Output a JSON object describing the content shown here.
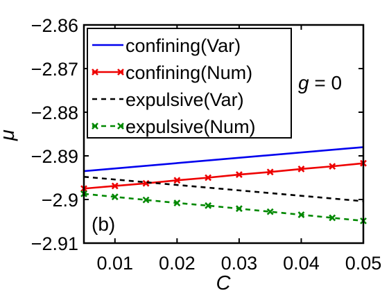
{
  "chart_data": {
    "type": "line",
    "title": "",
    "xlabel": "C",
    "ylabel": "μ",
    "xlim": [
      0.005,
      0.05
    ],
    "ylim": [
      -2.91,
      -2.86
    ],
    "xticks": [
      0.01,
      0.02,
      0.03,
      0.04,
      0.05
    ],
    "xtick_labels": [
      "0.01",
      "0.02",
      "0.03",
      "0.04",
      "0.05"
    ],
    "yticks": [
      -2.86,
      -2.87,
      -2.88,
      -2.89,
      -2.9,
      -2.91
    ],
    "ytick_labels": [
      "−2.86",
      "−2.87",
      "−2.88",
      "−2.89",
      "−2.9",
      "−2.91"
    ],
    "grid": false,
    "legend_position": "top-left",
    "annotations": {
      "panel": "(b)",
      "g_var": "g",
      "g_rest": " = 0"
    },
    "series": [
      {
        "name": "confining(Var)",
        "color": "#0000ee",
        "dash": "solid",
        "marker": "none",
        "x": [
          0.005,
          0.05
        ],
        "y": [
          -2.8935,
          -2.888
        ]
      },
      {
        "name": "confining(Num)",
        "color": "#ee0000",
        "dash": "solid",
        "marker": "x",
        "x": [
          0.005,
          0.01,
          0.015,
          0.02,
          0.025,
          0.03,
          0.035,
          0.04,
          0.045,
          0.05
        ],
        "y": [
          -2.8975,
          -2.8969,
          -2.8963,
          -2.8956,
          -2.895,
          -2.8943,
          -2.8937,
          -2.893,
          -2.8924,
          -2.8917
        ]
      },
      {
        "name": "expulsive(Var)",
        "color": "#000000",
        "dash": "dashed",
        "marker": "none",
        "x": [
          0.005,
          0.05
        ],
        "y": [
          -2.8948,
          -2.9004
        ]
      },
      {
        "name": "expulsive(Num)",
        "color": "#008800",
        "dash": "dashed",
        "marker": "x",
        "x": [
          0.005,
          0.01,
          0.015,
          0.02,
          0.025,
          0.03,
          0.035,
          0.04,
          0.045,
          0.05
        ],
        "y": [
          -2.8987,
          -2.8994,
          -2.9001,
          -2.9008,
          -2.9014,
          -2.9021,
          -2.9028,
          -2.9035,
          -2.9042,
          -2.9049
        ]
      }
    ]
  }
}
